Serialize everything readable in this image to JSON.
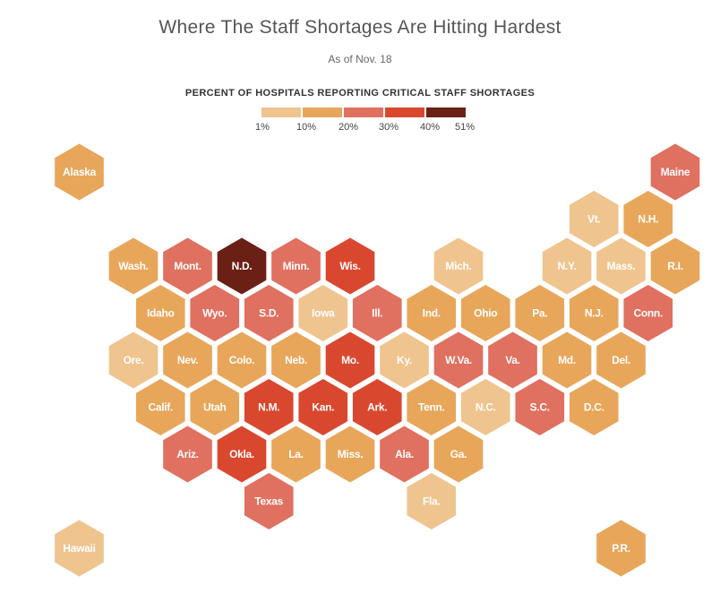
{
  "title": "Where The Staff Shortages Are Hitting Hardest",
  "subtitle": "As of Nov. 18",
  "legend": {
    "title": "PERCENT OF HOSPITALS REPORTING CRITICAL STAFF SHORTAGES",
    "ticks": [
      "1%",
      "10%",
      "20%",
      "30%",
      "40%",
      "51%"
    ],
    "colors": [
      "#efc48f",
      "#e8a65a",
      "#e07060",
      "#d9482e",
      "#6b2015"
    ]
  },
  "chart_data": {
    "type": "hex-tile-map",
    "color_bins": [
      {
        "range": "1%–10%",
        "color": "#efc48f"
      },
      {
        "range": "10%–20%",
        "color": "#e8a65a"
      },
      {
        "range": "20%–30%",
        "color": "#e07060"
      },
      {
        "range": "30%–40%",
        "color": "#d9482e"
      },
      {
        "range": "40%–51%",
        "color": "#6b2015"
      }
    ],
    "states": [
      {
        "label": "Alaska",
        "row": 0,
        "col": 0,
        "bin": 1
      },
      {
        "label": "Maine",
        "row": 0,
        "col": 11,
        "bin": 2
      },
      {
        "label": "Vt.",
        "row": 1,
        "col": 9,
        "bin": 0
      },
      {
        "label": "N.H.",
        "row": 1,
        "col": 10,
        "bin": 1
      },
      {
        "label": "Wash.",
        "row": 2,
        "col": 1,
        "bin": 1
      },
      {
        "label": "Mont.",
        "row": 2,
        "col": 2,
        "bin": 2
      },
      {
        "label": "N.D.",
        "row": 2,
        "col": 3,
        "bin": 4
      },
      {
        "label": "Minn.",
        "row": 2,
        "col": 4,
        "bin": 2
      },
      {
        "label": "Wis.",
        "row": 2,
        "col": 5,
        "bin": 3
      },
      {
        "label": "Mich.",
        "row": 2,
        "col": 7,
        "bin": 0
      },
      {
        "label": "N.Y.",
        "row": 2,
        "col": 9,
        "bin": 0
      },
      {
        "label": "Mass.",
        "row": 2,
        "col": 10,
        "bin": 0
      },
      {
        "label": "R.I.",
        "row": 2,
        "col": 11,
        "bin": 1
      },
      {
        "label": "Idaho",
        "row": 3,
        "col": 1,
        "bin": 1
      },
      {
        "label": "Wyo.",
        "row": 3,
        "col": 2,
        "bin": 2
      },
      {
        "label": "S.D.",
        "row": 3,
        "col": 3,
        "bin": 2
      },
      {
        "label": "Iowa",
        "row": 3,
        "col": 4,
        "bin": 0
      },
      {
        "label": "Ill.",
        "row": 3,
        "col": 5,
        "bin": 2
      },
      {
        "label": "Ind.",
        "row": 3,
        "col": 6,
        "bin": 1
      },
      {
        "label": "Ohio",
        "row": 3,
        "col": 7,
        "bin": 1
      },
      {
        "label": "Pa.",
        "row": 3,
        "col": 8,
        "bin": 1
      },
      {
        "label": "N.J.",
        "row": 3,
        "col": 9,
        "bin": 1
      },
      {
        "label": "Conn.",
        "row": 3,
        "col": 10,
        "bin": 2
      },
      {
        "label": "Ore.",
        "row": 4,
        "col": 1,
        "bin": 0
      },
      {
        "label": "Nev.",
        "row": 4,
        "col": 2,
        "bin": 1
      },
      {
        "label": "Colo.",
        "row": 4,
        "col": 3,
        "bin": 1
      },
      {
        "label": "Neb.",
        "row": 4,
        "col": 4,
        "bin": 1
      },
      {
        "label": "Mo.",
        "row": 4,
        "col": 5,
        "bin": 3
      },
      {
        "label": "Ky.",
        "row": 4,
        "col": 6,
        "bin": 0
      },
      {
        "label": "W.Va.",
        "row": 4,
        "col": 7,
        "bin": 2
      },
      {
        "label": "Va.",
        "row": 4,
        "col": 8,
        "bin": 2
      },
      {
        "label": "Md.",
        "row": 4,
        "col": 9,
        "bin": 1
      },
      {
        "label": "Del.",
        "row": 4,
        "col": 10,
        "bin": 1
      },
      {
        "label": "Calif.",
        "row": 5,
        "col": 1,
        "bin": 1
      },
      {
        "label": "Utah",
        "row": 5,
        "col": 2,
        "bin": 1
      },
      {
        "label": "N.M.",
        "row": 5,
        "col": 3,
        "bin": 3
      },
      {
        "label": "Kan.",
        "row": 5,
        "col": 4,
        "bin": 3
      },
      {
        "label": "Ark.",
        "row": 5,
        "col": 5,
        "bin": 3
      },
      {
        "label": "Tenn.",
        "row": 5,
        "col": 6,
        "bin": 1
      },
      {
        "label": "N.C.",
        "row": 5,
        "col": 7,
        "bin": 0
      },
      {
        "label": "S.C.",
        "row": 5,
        "col": 8,
        "bin": 2
      },
      {
        "label": "D.C.",
        "row": 5,
        "col": 9,
        "bin": 1
      },
      {
        "label": "Ariz.",
        "row": 6,
        "col": 2,
        "bin": 2
      },
      {
        "label": "Okla.",
        "row": 6,
        "col": 3,
        "bin": 3
      },
      {
        "label": "La.",
        "row": 6,
        "col": 4,
        "bin": 1
      },
      {
        "label": "Miss.",
        "row": 6,
        "col": 5,
        "bin": 1
      },
      {
        "label": "Ala.",
        "row": 6,
        "col": 6,
        "bin": 2
      },
      {
        "label": "Ga.",
        "row": 6,
        "col": 7,
        "bin": 1
      },
      {
        "label": "Texas",
        "row": 7,
        "col": 3,
        "bin": 2
      },
      {
        "label": "Fla.",
        "row": 7,
        "col": 6,
        "bin": 0
      },
      {
        "label": "Hawaii",
        "row": 8,
        "col": 0,
        "bin": 0
      },
      {
        "label": "P.R.",
        "row": 8,
        "col": 10,
        "bin": 1
      }
    ]
  }
}
